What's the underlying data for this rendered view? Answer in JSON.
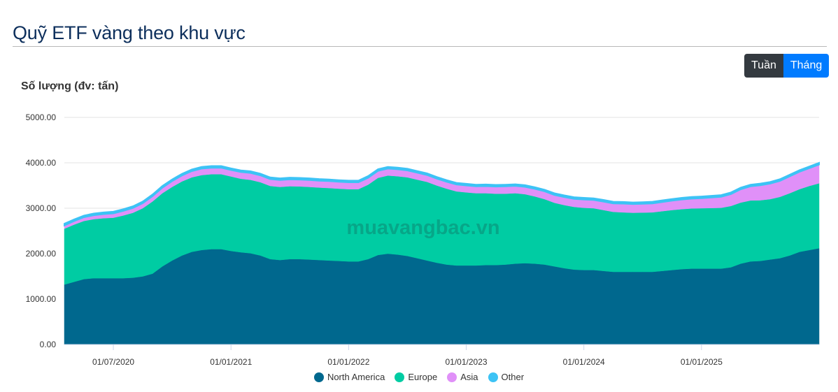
{
  "header": {
    "title": "Quỹ ETF vàng theo khu vực"
  },
  "toggle": {
    "week_label": "Tuần",
    "month_label": "Tháng",
    "active": "Tháng"
  },
  "watermark": "muavangbac.vn",
  "chart_data": {
    "type": "area",
    "stacked": true,
    "ylabel": "Số lượng (đv: tấn)",
    "ylim": [
      0,
      5000
    ],
    "yticks": [
      "0.00",
      "1000.00",
      "2000.00",
      "3000.00",
      "4000.00",
      "5000.00"
    ],
    "ytick_values": [
      0,
      1000,
      2000,
      3000,
      4000,
      5000
    ],
    "grid": true,
    "legend_position": "bottom",
    "point_count": 78,
    "xticks": [
      {
        "label": "01/07/2020",
        "index": 5
      },
      {
        "label": "01/01/2021",
        "index": 17
      },
      {
        "label": "01/01/2022",
        "index": 29
      },
      {
        "label": "01/01/2023",
        "index": 41
      },
      {
        "label": "01/01/2024",
        "index": 53
      },
      {
        "label": "01/01/2025",
        "index": 65
      }
    ],
    "series": [
      {
        "name": "North America",
        "color": "#00688e",
        "values": [
          1320,
          1380,
          1440,
          1460,
          1460,
          1460,
          1460,
          1470,
          1500,
          1560,
          1720,
          1850,
          1960,
          2040,
          2080,
          2100,
          2100,
          2060,
          2030,
          2010,
          1960,
          1880,
          1860,
          1880,
          1880,
          1870,
          1860,
          1850,
          1840,
          1830,
          1830,
          1880,
          1970,
          2000,
          1980,
          1950,
          1900,
          1850,
          1800,
          1760,
          1740,
          1740,
          1740,
          1750,
          1750,
          1760,
          1780,
          1790,
          1780,
          1760,
          1720,
          1680,
          1650,
          1640,
          1640,
          1620,
          1600,
          1600,
          1600,
          1600,
          1600,
          1620,
          1640,
          1660,
          1670,
          1670,
          1670,
          1670,
          1700,
          1780,
          1830,
          1840,
          1870,
          1900,
          1960,
          2040,
          2080,
          2120
        ]
      },
      {
        "name": "Europe",
        "color": "#00cca3",
        "values": [
          1230,
          1260,
          1280,
          1300,
          1320,
          1330,
          1380,
          1430,
          1500,
          1590,
          1610,
          1620,
          1630,
          1640,
          1650,
          1650,
          1650,
          1640,
          1620,
          1615,
          1612,
          1610,
          1610,
          1605,
          1600,
          1600,
          1595,
          1595,
          1590,
          1590,
          1590,
          1640,
          1700,
          1720,
          1725,
          1730,
          1730,
          1730,
          1700,
          1670,
          1630,
          1610,
          1590,
          1580,
          1570,
          1560,
          1550,
          1520,
          1480,
          1440,
          1400,
          1390,
          1380,
          1370,
          1360,
          1340,
          1320,
          1310,
          1300,
          1305,
          1310,
          1315,
          1320,
          1320,
          1325,
          1330,
          1335,
          1340,
          1350,
          1345,
          1340,
          1335,
          1330,
          1350,
          1370,
          1380,
          1410,
          1430
        ]
      },
      {
        "name": "Asia",
        "color": "#e090f8",
        "values": [
          70,
          75,
          80,
          85,
          90,
          95,
          100,
          105,
          110,
          115,
          120,
          125,
          130,
          135,
          140,
          140,
          140,
          140,
          145,
          150,
          150,
          150,
          150,
          150,
          150,
          150,
          150,
          150,
          150,
          150,
          150,
          150,
          150,
          150,
          150,
          150,
          150,
          150,
          150,
          150,
          150,
          150,
          150,
          155,
          155,
          160,
          160,
          160,
          165,
          170,
          170,
          175,
          175,
          180,
          180,
          185,
          185,
          190,
          190,
          190,
          195,
          200,
          205,
          210,
          215,
          220,
          230,
          240,
          260,
          290,
          310,
          330,
          340,
          350,
          370,
          380,
          390,
          410
        ]
      },
      {
        "name": "Other",
        "color": "#3dc3f5",
        "values": [
          40,
          40,
          40,
          40,
          40,
          40,
          40,
          40,
          40,
          40,
          40,
          40,
          40,
          40,
          40,
          40,
          40,
          40,
          40,
          40,
          40,
          40,
          40,
          40,
          40,
          40,
          40,
          40,
          40,
          40,
          40,
          40,
          40,
          40,
          40,
          40,
          40,
          40,
          40,
          40,
          40,
          40,
          40,
          40,
          40,
          40,
          40,
          40,
          40,
          40,
          40,
          40,
          40,
          40,
          40,
          40,
          40,
          40,
          40,
          40,
          40,
          40,
          40,
          40,
          40,
          40,
          40,
          40,
          40,
          40,
          40,
          40,
          40,
          40,
          40,
          40,
          40,
          40
        ]
      }
    ]
  }
}
